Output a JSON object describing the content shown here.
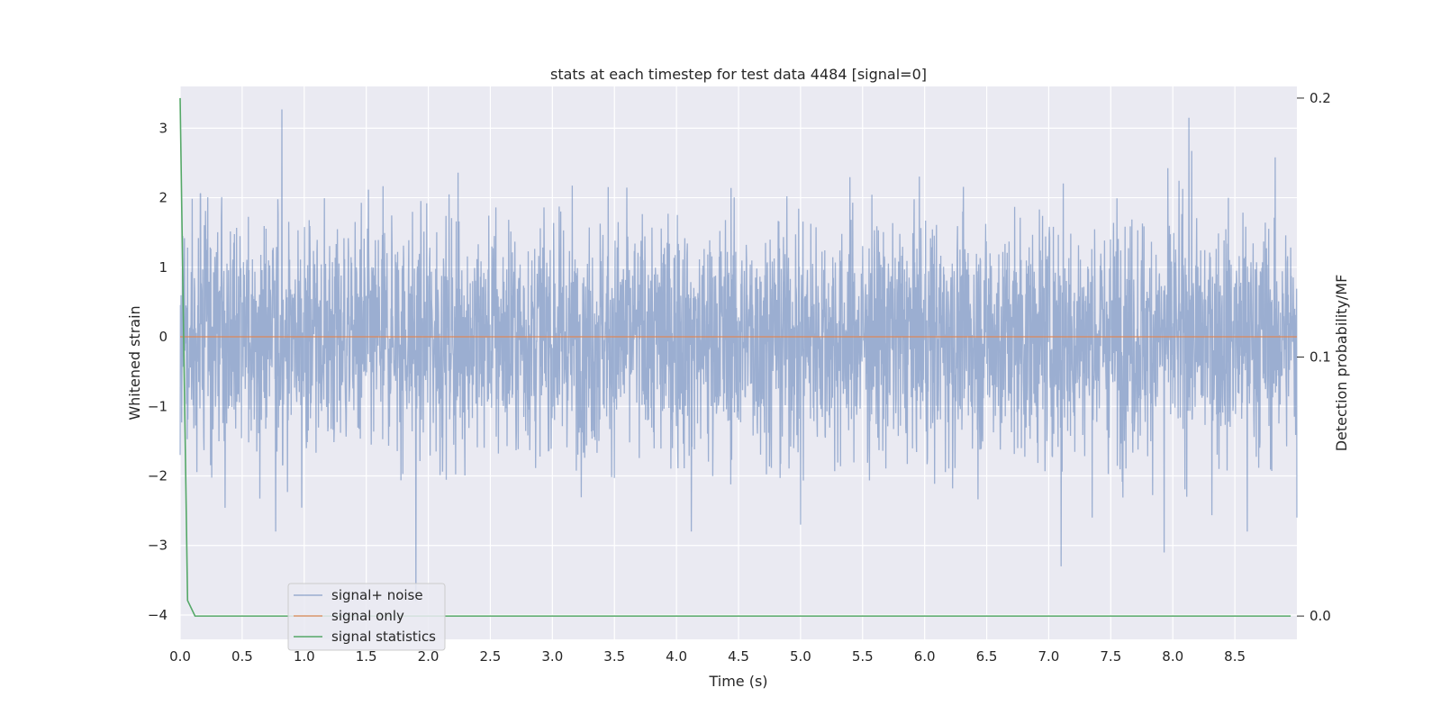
{
  "chart_data": {
    "type": "line",
    "title": "stats at each timestep for test data 4484 [signal=0]",
    "xlabel": "Time (s)",
    "ylabel_left": "Whitened strain",
    "ylabel_right": "Detection probability/MF",
    "xlim": [
      0.0,
      9.0
    ],
    "ylim_left": [
      -4.35,
      3.6
    ],
    "ylim_right": [
      -0.009,
      0.2045
    ],
    "x_ticks": [
      "0.0",
      "0.5",
      "1.0",
      "1.5",
      "2.0",
      "2.5",
      "3.0",
      "3.5",
      "4.0",
      "4.5",
      "5.0",
      "5.5",
      "6.0",
      "6.5",
      "7.0",
      "7.5",
      "8.0",
      "8.5"
    ],
    "y_ticks_left": [
      "−4",
      "−3",
      "−2",
      "−1",
      "0",
      "1",
      "2",
      "3"
    ],
    "y_ticks_right": [
      "0.0",
      "0.1",
      "0.2"
    ],
    "grid": true,
    "legend_position": "lower-left",
    "series": [
      {
        "name": "signal+ noise",
        "axis": "left",
        "color": "#4c72b0",
        "description_kind": "noise",
        "sample_rate": 400,
        "envelope_std": 0.85,
        "peaks": [
          [
            0.0,
            -1.7
          ],
          [
            0.02,
            1.45
          ],
          [
            0.82,
            3.27
          ],
          [
            0.77,
            -2.8
          ],
          [
            1.9,
            -3.8
          ],
          [
            4.12,
            -2.8
          ],
          [
            5.0,
            -2.7
          ],
          [
            7.1,
            -3.3
          ],
          [
            7.93,
            -3.1
          ],
          [
            8.13,
            3.15
          ],
          [
            8.6,
            -2.8
          ],
          [
            9.0,
            -2.6
          ]
        ]
      },
      {
        "name": "signal only",
        "axis": "left",
        "color": "#dd8452",
        "x": [
          0.0,
          9.0
        ],
        "y": [
          0.0,
          0.0
        ]
      },
      {
        "name": "signal statistics",
        "axis": "right",
        "color": "#55a868",
        "x": [
          0.0,
          0.06,
          0.12,
          8.95
        ],
        "y": [
          0.2,
          0.006,
          0.0,
          0.0
        ]
      }
    ]
  }
}
